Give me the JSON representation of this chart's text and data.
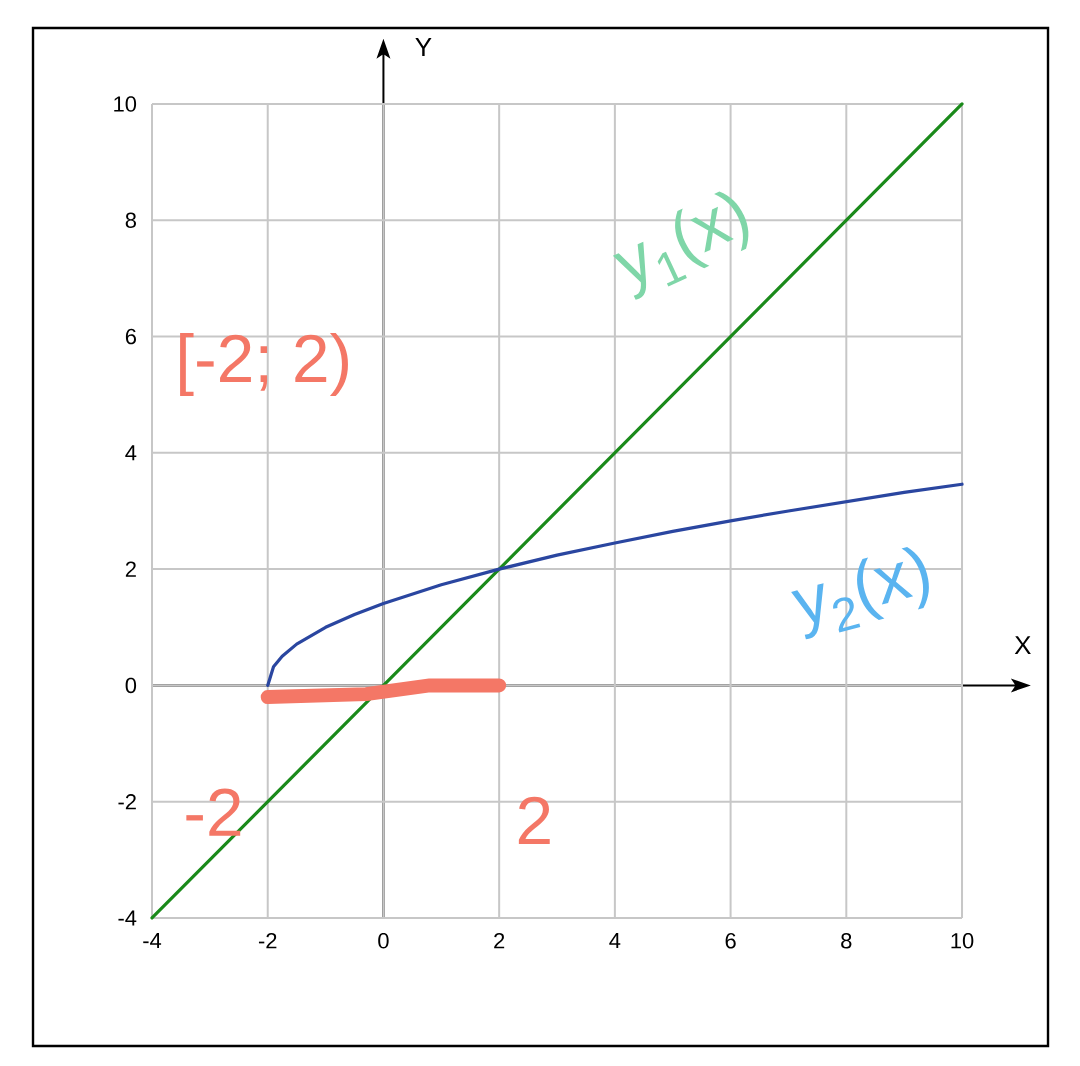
{
  "chart_data": {
    "type": "line",
    "xlabel": "X",
    "ylabel": "Y",
    "xlim": [
      -4,
      10
    ],
    "ylim": [
      -4,
      10
    ],
    "xticks": [
      -4,
      -2,
      0,
      2,
      4,
      6,
      8,
      10
    ],
    "yticks": [
      -4,
      -2,
      0,
      2,
      4,
      6,
      8,
      10
    ],
    "grid": true,
    "series": [
      {
        "name": "y$_{1}$(x)",
        "color": "#1a8a1a",
        "x": [
          -4,
          10
        ],
        "values": [
          -4,
          10
        ]
      },
      {
        "name": "y$_{2}$(x)",
        "color": "#2a46a0",
        "x": [
          -2,
          -1.9,
          -1.75,
          -1.5,
          -1,
          -0.5,
          0,
          1,
          2,
          3,
          4,
          5,
          6,
          7,
          8,
          9,
          10
        ],
        "values": [
          0,
          0.32,
          0.5,
          0.71,
          1,
          1.22,
          1.41,
          1.73,
          2,
          2.24,
          2.45,
          2.65,
          2.83,
          3,
          3.16,
          3.32,
          3.46
        ]
      },
      {
        "color": "#f47766",
        "x": [
          -2,
          -0.3,
          0.8,
          2
        ],
        "values": [
          -0.2,
          -0.15,
          0,
          0
        ]
      }
    ],
    "annotations": [
      "[-2; 2)",
      "-2",
      "2"
    ]
  }
}
